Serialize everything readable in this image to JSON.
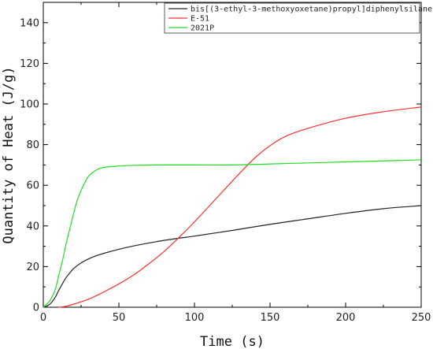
{
  "chart_data": {
    "type": "line",
    "xlabel": "Time (s)",
    "ylabel": "Quantity of Heat (J/g)",
    "xlim": [
      0,
      250
    ],
    "ylim": [
      0,
      150
    ],
    "xticks": [
      0,
      50,
      100,
      150,
      200,
      250
    ],
    "yticks": [
      0,
      20,
      40,
      60,
      80,
      100,
      120,
      140
    ],
    "grid": false,
    "legend_position": "top-right",
    "series": [
      {
        "name": "bis[(3-ethyl-3-methoxyoxetane)propyl]diphenylsilane",
        "color": "#222222",
        "x": [
          0,
          3,
          5,
          8,
          10,
          13,
          15,
          18,
          20,
          25,
          30,
          35,
          40,
          50,
          60,
          75,
          90,
          100,
          125,
          150,
          175,
          200,
          225,
          250
        ],
        "y": [
          0,
          0.8,
          2,
          5,
          8,
          12,
          14.5,
          17.3,
          19,
          21.8,
          23.8,
          25.3,
          26.5,
          28.5,
          30.2,
          32.3,
          34,
          35,
          37.8,
          40.8,
          43.5,
          46.2,
          48.5,
          50
        ]
      },
      {
        "name": "E-51",
        "color": "#ff3030",
        "x": [
          10,
          13,
          15,
          20,
          30,
          40,
          50,
          60,
          70,
          80,
          90,
          100,
          110,
          120,
          130,
          140,
          150,
          160,
          175,
          200,
          225,
          250
        ],
        "y": [
          0,
          0.2,
          0.5,
          1.5,
          4,
          7.5,
          11.5,
          16,
          21.5,
          27.5,
          34.5,
          42,
          50,
          58,
          66,
          73.5,
          79.5,
          84,
          88,
          93,
          96.2,
          98.5
        ]
      },
      {
        "name": "2021P",
        "color": "#22dd22",
        "x": [
          0,
          3,
          5,
          8,
          10,
          13,
          15,
          18,
          20,
          22,
          25,
          28,
          30,
          35,
          40,
          50,
          60,
          75,
          100,
          125,
          150,
          175,
          200,
          225,
          250
        ],
        "y": [
          0,
          2,
          4,
          9,
          15,
          24,
          31,
          40,
          46,
          51.5,
          57.5,
          62,
          64.5,
          67.5,
          68.8,
          69.5,
          69.8,
          70,
          70,
          70,
          70.5,
          71,
          71.5,
          72,
          72.5
        ]
      }
    ]
  }
}
